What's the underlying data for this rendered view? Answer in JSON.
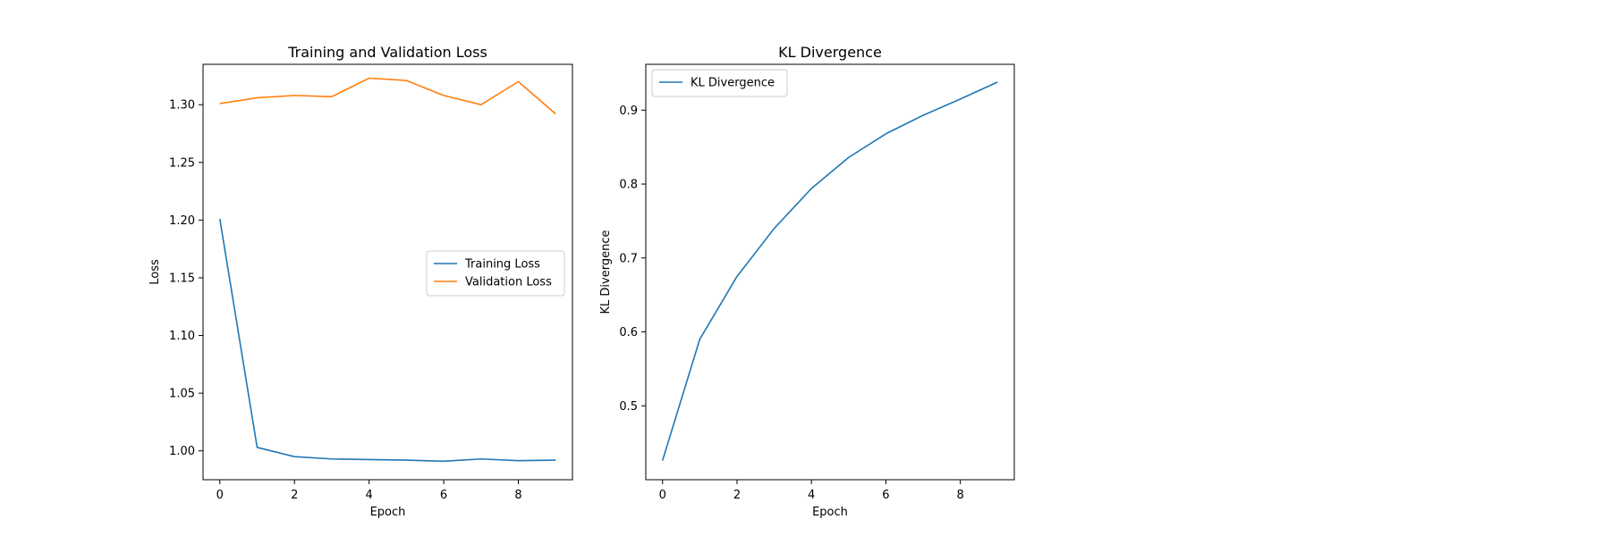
{
  "chart_data": [
    {
      "type": "line",
      "title": "Training and Validation Loss",
      "xlabel": "Epoch",
      "ylabel": "Loss",
      "x": [
        0,
        1,
        2,
        3,
        4,
        5,
        6,
        7,
        8,
        9
      ],
      "xlim": [
        -0.45,
        9.45
      ],
      "ylim": [
        0.975,
        1.335
      ],
      "xticks": [
        0,
        2,
        4,
        6,
        8
      ],
      "yticks": [
        1.0,
        1.05,
        1.1,
        1.15,
        1.2,
        1.25,
        1.3
      ],
      "ytick_labels": [
        "1.00",
        "1.05",
        "1.10",
        "1.15",
        "1.20",
        "1.25",
        "1.30"
      ],
      "grid": false,
      "legend_position": "center-right",
      "series": [
        {
          "name": "Training Loss",
          "color": "#1f77b4",
          "values": [
            1.201,
            1.003,
            0.995,
            0.993,
            0.9925,
            0.992,
            0.991,
            0.993,
            0.9915,
            0.992
          ]
        },
        {
          "name": "Validation Loss",
          "color": "#ff7f0e",
          "values": [
            1.301,
            1.306,
            1.308,
            1.307,
            1.323,
            1.321,
            1.308,
            1.3,
            1.32,
            1.292
          ]
        }
      ]
    },
    {
      "type": "line",
      "title": "KL Divergence",
      "xlabel": "Epoch",
      "ylabel": "KL Divergence",
      "x": [
        0,
        1,
        2,
        3,
        4,
        5,
        6,
        7,
        8,
        9
      ],
      "xlim": [
        -0.45,
        9.45
      ],
      "ylim": [
        0.4,
        0.962
      ],
      "xticks": [
        0,
        2,
        4,
        6,
        8
      ],
      "yticks": [
        0.5,
        0.6,
        0.7,
        0.8,
        0.9
      ],
      "ytick_labels": [
        "0.5",
        "0.6",
        "0.7",
        "0.8",
        "0.9"
      ],
      "grid": false,
      "legend_position": "top-left",
      "series": [
        {
          "name": "KL Divergence",
          "color": "#1f77b4",
          "values": [
            0.426,
            0.59,
            0.675,
            0.74,
            0.794,
            0.836,
            0.868,
            0.893,
            0.915,
            0.938
          ]
        }
      ]
    }
  ]
}
